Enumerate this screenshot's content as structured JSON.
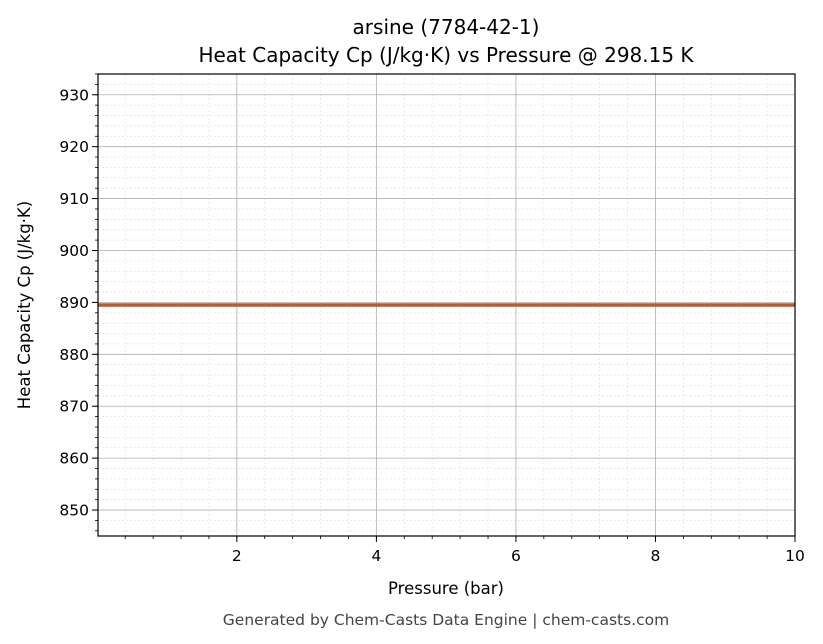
{
  "chart_data": {
    "type": "line",
    "title": "arsine (7784-42-1)",
    "subtitle": "Heat Capacity Cp (J/kg·K) vs Pressure @ 298.15 K",
    "xlabel": "Pressure (bar)",
    "ylabel": "Heat Capacity Cp (J/kg·K)",
    "xlim": [
      0.01,
      10
    ],
    "ylim": [
      845,
      934
    ],
    "x_ticks": [
      2,
      4,
      6,
      8,
      10
    ],
    "y_ticks": [
      850,
      860,
      870,
      880,
      890,
      900,
      910,
      920,
      930
    ],
    "grid": true,
    "minor_grid": true,
    "series": [
      {
        "color": "#c0572e",
        "x": [
          0.01,
          1,
          2,
          3,
          4,
          5,
          6,
          7,
          8,
          9,
          10
        ],
        "y": [
          889.5,
          889.5,
          889.5,
          889.5,
          889.5,
          889.5,
          889.5,
          889.5,
          889.5,
          889.5,
          889.5
        ]
      }
    ]
  },
  "footer": "Generated by Chem-Casts Data Engine | chem-casts.com"
}
